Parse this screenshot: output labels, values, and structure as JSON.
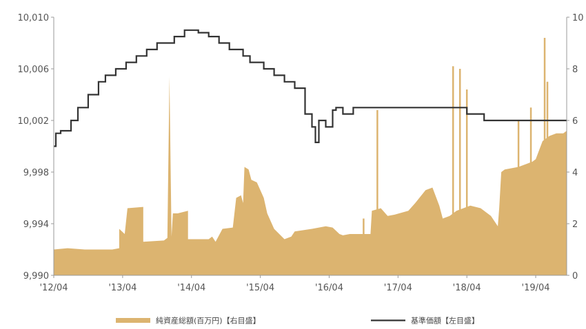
{
  "chart_data": {
    "type": "area+line",
    "title": "",
    "xlabel": "",
    "ylabel_left": "",
    "ylabel_right": "",
    "x_tick_labels": [
      "'12/04",
      "'13/04",
      "'14/04",
      "'15/04",
      "'16/04",
      "'17/04",
      "'18/04",
      "'19/04"
    ],
    "x_ticks": [
      2012.25,
      2013.25,
      2014.25,
      2015.25,
      2016.25,
      2017.25,
      2018.25,
      2019.25
    ],
    "xlim": [
      2012.25,
      2019.7
    ],
    "y_left": {
      "lim": [
        9990,
        10010
      ],
      "ticks": [
        9990,
        9994,
        9998,
        10002,
        10006,
        10010
      ],
      "tick_labels": [
        "9,990",
        "9,994",
        "9,998",
        "10,002",
        "10,006",
        "10,010"
      ]
    },
    "y_right": {
      "lim": [
        0,
        10
      ],
      "ticks": [
        0,
        2,
        4,
        6,
        8,
        10
      ],
      "tick_labels": [
        "0",
        "2",
        "4",
        "6",
        "8",
        "10"
      ]
    },
    "grid": false,
    "legend_position": "bottom",
    "series": [
      {
        "name": "純資産総額(百万円)【右目盛】",
        "type": "area",
        "axis": "right",
        "color": "#dcb470",
        "points": [
          [
            2012.25,
            1.0
          ],
          [
            2012.45,
            1.05
          ],
          [
            2012.7,
            1.0
          ],
          [
            2013.1,
            1.0
          ],
          [
            2013.2,
            1.05
          ],
          [
            2013.2,
            1.8
          ],
          [
            2013.28,
            1.6
          ],
          [
            2013.32,
            2.6
          ],
          [
            2013.55,
            2.65
          ],
          [
            2013.55,
            1.3
          ],
          [
            2013.85,
            1.35
          ],
          [
            2013.9,
            1.45
          ],
          [
            2013.93,
            7.7
          ],
          [
            2013.96,
            1.5
          ],
          [
            2013.98,
            2.4
          ],
          [
            2014.05,
            2.4
          ],
          [
            2014.2,
            2.5
          ],
          [
            2014.2,
            1.4
          ],
          [
            2014.5,
            1.4
          ],
          [
            2014.55,
            1.5
          ],
          [
            2014.6,
            1.3
          ],
          [
            2014.7,
            1.8
          ],
          [
            2014.85,
            1.85
          ],
          [
            2014.9,
            3.0
          ],
          [
            2014.97,
            3.1
          ],
          [
            2015.0,
            2.8
          ],
          [
            2015.02,
            4.2
          ],
          [
            2015.08,
            4.1
          ],
          [
            2015.12,
            3.7
          ],
          [
            2015.2,
            3.6
          ],
          [
            2015.3,
            3.0
          ],
          [
            2015.35,
            2.4
          ],
          [
            2015.45,
            1.8
          ],
          [
            2015.6,
            1.4
          ],
          [
            2015.7,
            1.5
          ],
          [
            2015.75,
            1.7
          ],
          [
            2016.0,
            1.8
          ],
          [
            2016.2,
            1.9
          ],
          [
            2016.3,
            1.85
          ],
          [
            2016.4,
            1.6
          ],
          [
            2016.45,
            1.55
          ],
          [
            2016.55,
            1.6
          ],
          [
            2016.85,
            1.6
          ],
          [
            2016.87,
            2.5
          ],
          [
            2017.0,
            2.6
          ],
          [
            2017.1,
            2.3
          ],
          [
            2017.2,
            2.35
          ],
          [
            2017.4,
            2.5
          ],
          [
            2017.5,
            2.8
          ],
          [
            2017.65,
            3.3
          ],
          [
            2017.75,
            3.4
          ],
          [
            2017.85,
            2.7
          ],
          [
            2017.9,
            2.2
          ],
          [
            2018.0,
            2.3
          ],
          [
            2018.1,
            2.5
          ],
          [
            2018.3,
            2.7
          ],
          [
            2018.45,
            2.6
          ],
          [
            2018.6,
            2.3
          ],
          [
            2018.7,
            1.9
          ],
          [
            2018.72,
            2.6
          ],
          [
            2018.75,
            4.0
          ],
          [
            2018.8,
            4.1
          ],
          [
            2019.0,
            4.2
          ],
          [
            2019.1,
            4.3
          ],
          [
            2019.2,
            4.4
          ],
          [
            2019.25,
            4.5
          ],
          [
            2019.35,
            5.2
          ],
          [
            2019.4,
            5.3
          ],
          [
            2019.45,
            5.4
          ],
          [
            2019.55,
            5.5
          ],
          [
            2019.65,
            5.5
          ],
          [
            2019.7,
            5.6
          ]
        ],
        "spikes": [
          [
            2016.75,
            2.2
          ],
          [
            2016.95,
            6.4
          ],
          [
            2018.05,
            8.1
          ],
          [
            2018.15,
            8.0
          ],
          [
            2018.25,
            7.2
          ],
          [
            2019.0,
            6.0
          ],
          [
            2019.18,
            6.5
          ],
          [
            2019.38,
            9.2
          ],
          [
            2019.42,
            7.5
          ]
        ]
      },
      {
        "name": "基準価額【左目盛】",
        "type": "line",
        "axis": "left",
        "color": "#333333",
        "points": [
          [
            2012.25,
            10000.0
          ],
          [
            2012.28,
            10001.0
          ],
          [
            2012.35,
            10001.2
          ],
          [
            2012.5,
            10002.0
          ],
          [
            2012.6,
            10003.0
          ],
          [
            2012.75,
            10004.0
          ],
          [
            2012.9,
            10005.0
          ],
          [
            2013.0,
            10005.5
          ],
          [
            2013.15,
            10006.0
          ],
          [
            2013.3,
            10006.5
          ],
          [
            2013.45,
            10007.0
          ],
          [
            2013.6,
            10007.5
          ],
          [
            2013.75,
            10008.0
          ],
          [
            2013.9,
            10008.0
          ],
          [
            2014.0,
            10008.5
          ],
          [
            2014.15,
            10009.0
          ],
          [
            2014.35,
            10008.8
          ],
          [
            2014.5,
            10008.5
          ],
          [
            2014.65,
            10008.0
          ],
          [
            2014.8,
            10007.5
          ],
          [
            2015.0,
            10007.0
          ],
          [
            2015.1,
            10006.5
          ],
          [
            2015.3,
            10006.0
          ],
          [
            2015.45,
            10005.5
          ],
          [
            2015.6,
            10005.0
          ],
          [
            2015.75,
            10004.5
          ],
          [
            2015.9,
            10002.5
          ],
          [
            2016.0,
            10001.5
          ],
          [
            2016.05,
            10000.3
          ],
          [
            2016.1,
            10002.0
          ],
          [
            2016.2,
            10001.5
          ],
          [
            2016.3,
            10002.8
          ],
          [
            2016.35,
            10003.0
          ],
          [
            2016.45,
            10002.5
          ],
          [
            2016.6,
            10003.0
          ],
          [
            2017.0,
            10003.0
          ],
          [
            2017.5,
            10003.0
          ],
          [
            2018.1,
            10003.0
          ],
          [
            2018.25,
            10002.5
          ],
          [
            2018.5,
            10002.0
          ],
          [
            2019.0,
            10002.0
          ],
          [
            2019.7,
            10002.0
          ]
        ]
      }
    ]
  }
}
